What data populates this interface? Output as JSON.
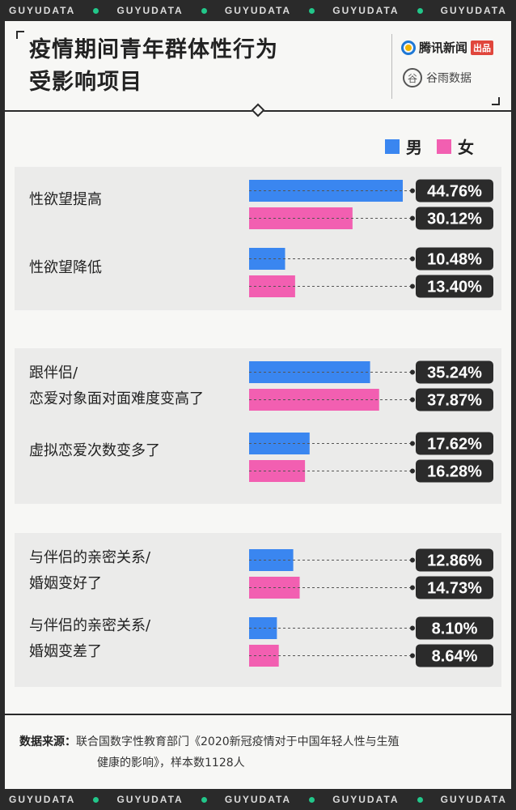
{
  "ticker": {
    "words": [
      "GUYUDATA",
      "GUYUDATA",
      "GUYUDATA",
      "GUYUDATA",
      "GUYUDATA"
    ]
  },
  "header": {
    "title_line1": "疫情期间青年群体性行为",
    "title_line2": "受影响项目",
    "brand1_name": "腾讯新闻",
    "brand1_tag": "出品",
    "brand2_name": "谷雨数据",
    "brand2_logo_char": "谷"
  },
  "legend": [
    {
      "label": "男",
      "color": "#3a86f0"
    },
    {
      "label": "女",
      "color": "#f25fb1"
    }
  ],
  "chart_data": {
    "type": "bar",
    "orientation": "horizontal",
    "categories": [
      [
        "性欲望提高"
      ],
      [
        "性欲望降低"
      ],
      [
        "跟伴侣/",
        "恋爱对象面对面难度变高了"
      ],
      [
        "虚拟恋爱次数变多了"
      ],
      [
        "与伴侣的亲密关系/",
        "婚姻变好了"
      ],
      [
        "与伴侣的亲密关系/",
        "婚姻变差了"
      ]
    ],
    "series": [
      {
        "name": "男",
        "color": "#3a86f0",
        "values": [
          44.76,
          10.48,
          35.24,
          17.62,
          12.86,
          8.1
        ],
        "labels": [
          "44.76%",
          "10.48%",
          "35.24%",
          "17.62%",
          "12.86%",
          "8.10%"
        ]
      },
      {
        "name": "女",
        "color": "#f25fb1",
        "values": [
          30.12,
          13.4,
          37.87,
          16.28,
          14.73,
          8.64
        ],
        "labels": [
          "30.12%",
          "13.40%",
          "37.87%",
          "16.28%",
          "14.73%",
          "8.64%"
        ]
      }
    ],
    "unit": "%",
    "grid": false,
    "legend_position": "top-right"
  },
  "source": {
    "label": "数据来源：",
    "line1": "联合国数字性教育部门《2020新冠疫情对于中国年轻人性与生殖",
    "line2": "健康的影响》，样本数1128人"
  }
}
